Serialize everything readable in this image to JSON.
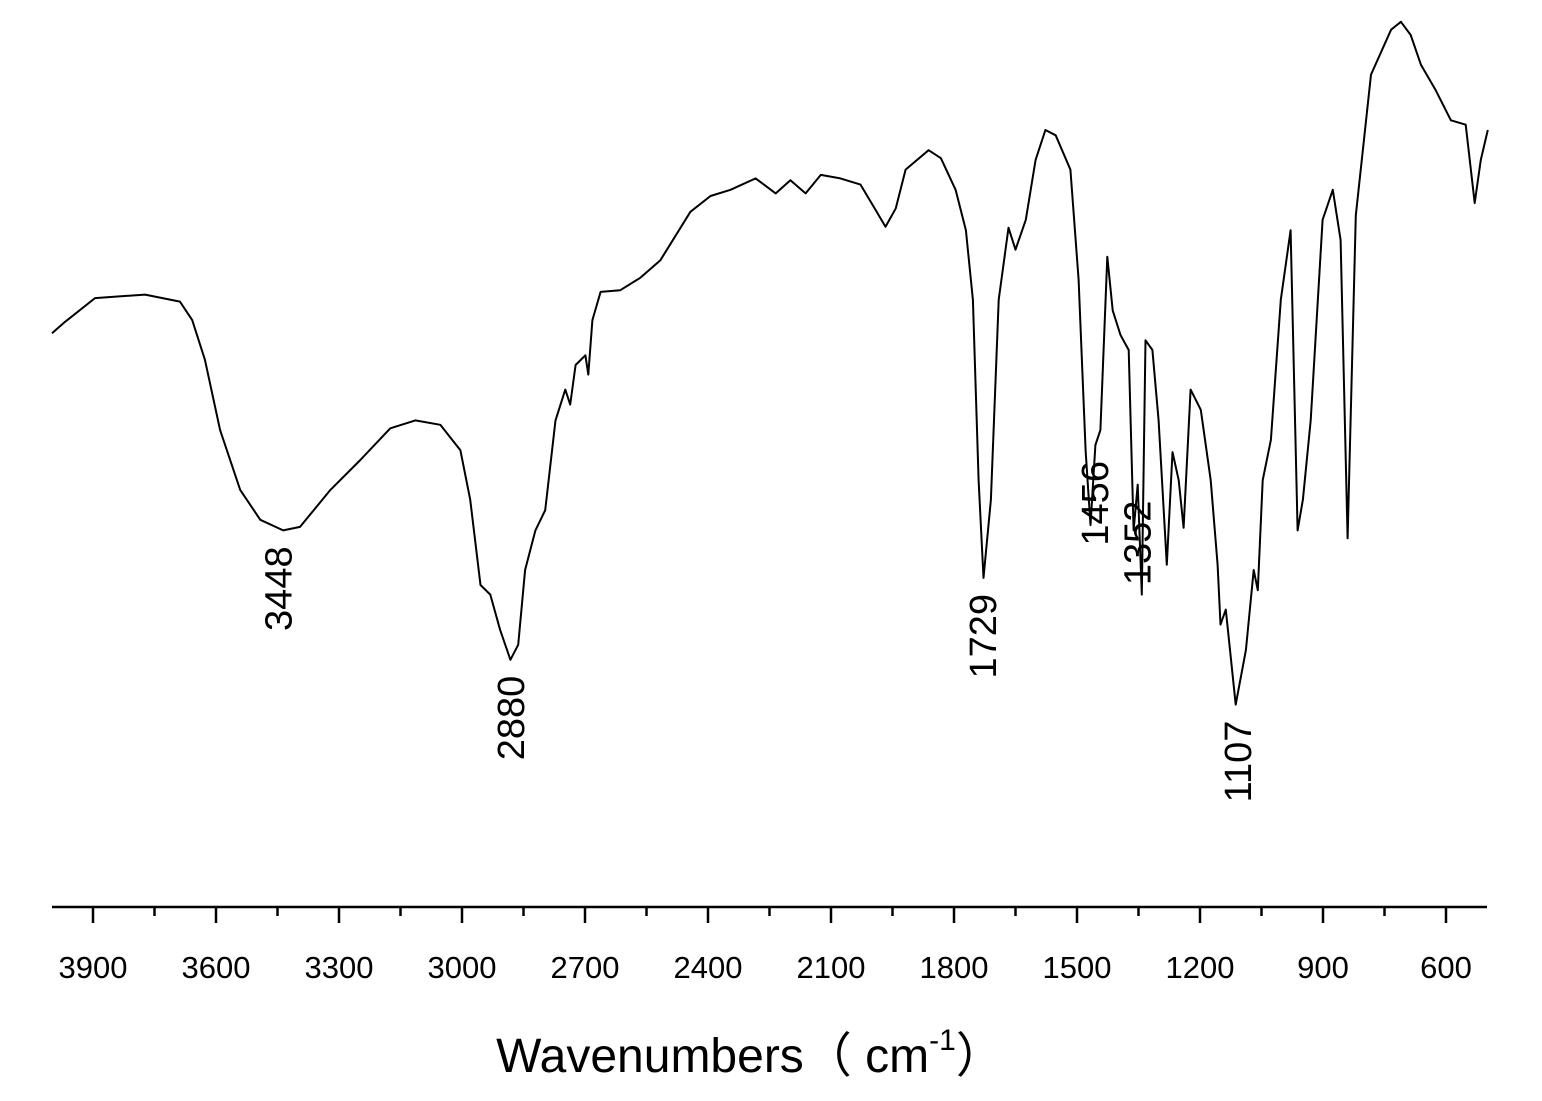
{
  "chart_data": {
    "type": "line",
    "x_label": "Wavenumbers（ cm",
    "x_label_sup": "-1",
    "x_label_end": "）",
    "x": [
      4000,
      3968,
      3895,
      3773,
      3688,
      3658,
      3627,
      3590,
      3541,
      3492,
      3436,
      3395,
      3321,
      3248,
      3175,
      3114,
      3053,
      3004,
      2980,
      2955,
      2931,
      2907,
      2882,
      2863,
      2846,
      2821,
      2797,
      2772,
      2748,
      2736,
      2723,
      2699,
      2692,
      2682,
      2662,
      2614,
      2565,
      2516,
      2443,
      2394,
      2345,
      2284,
      2235,
      2199,
      2162,
      2125,
      2077,
      2028,
      1991,
      1967,
      1942,
      1918,
      1862,
      1832,
      1796,
      1771,
      1754,
      1740,
      1728,
      1710,
      1691,
      1667,
      1650,
      1625,
      1601,
      1577,
      1552,
      1516,
      1496,
      1479,
      1467,
      1455,
      1443,
      1426,
      1413,
      1394,
      1374,
      1362,
      1352,
      1342,
      1333,
      1316,
      1301,
      1281,
      1267,
      1252,
      1240,
      1223,
      1198,
      1174,
      1157,
      1150,
      1137,
      1113,
      1088,
      1069,
      1059,
      1047,
      1027,
      1003,
      979,
      962,
      949,
      930,
      901,
      876,
      857,
      840,
      820,
      783,
      734,
      710,
      686,
      661,
      625,
      588,
      552,
      530,
      515,
      498
    ],
    "values": [
      64.4,
      65.7,
      68.4,
      68.8,
      68.0,
      65.9,
      61.4,
      53.4,
      46.6,
      43.2,
      42.0,
      42.4,
      46.6,
      50.0,
      53.6,
      54.5,
      54.0,
      51.1,
      45.5,
      35.8,
      34.7,
      30.7,
      27.3,
      29.0,
      37.5,
      42.0,
      44.3,
      54.5,
      58.0,
      56.3,
      60.8,
      61.9,
      59.7,
      65.9,
      69.1,
      69.3,
      70.7,
      72.7,
      78.2,
      80.0,
      80.7,
      82.0,
      80.3,
      81.8,
      80.3,
      82.4,
      82.0,
      81.3,
      78.4,
      76.5,
      78.6,
      83.0,
      85.2,
      84.3,
      80.7,
      76.1,
      68.2,
      47.7,
      36.6,
      45.5,
      68.2,
      76.4,
      73.9,
      77.3,
      84.1,
      87.5,
      86.9,
      83.0,
      70.5,
      51.1,
      42.6,
      51.7,
      53.4,
      73.1,
      67.0,
      64.2,
      62.5,
      42.0,
      47.2,
      34.7,
      63.6,
      62.5,
      54.5,
      38.1,
      50.9,
      47.7,
      42.3,
      58.0,
      55.7,
      47.7,
      38.1,
      31.3,
      33.0,
      22.2,
      28.4,
      37.5,
      35.2,
      47.7,
      52.3,
      68.2,
      76.1,
      42.0,
      45.5,
      54.5,
      77.3,
      80.7,
      75.0,
      41.1,
      77.8,
      93.8,
      98.9,
      99.8,
      98.3,
      94.9,
      92.0,
      88.6,
      88.1,
      79.2,
      84.1,
      87.5
    ],
    "color": "#000000",
    "xlim": [
      4000,
      500
    ],
    "ylim": [
      0,
      100
    ],
    "xticks": [
      3900,
      3600,
      3300,
      3000,
      2700,
      2400,
      2100,
      1800,
      1500,
      1200,
      900,
      600
    ],
    "xminorticks": [
      3750,
      3450,
      3150,
      2850,
      2550,
      2250,
      1950,
      1650,
      1350,
      1050,
      750
    ],
    "annotations": [
      {
        "text": "3448",
        "x": 3448
      },
      {
        "text": "2880",
        "x": 2880
      },
      {
        "text": "1729",
        "x": 1729
      },
      {
        "text": "1456",
        "x": 1456
      },
      {
        "text": "1352",
        "x": 1352
      },
      {
        "text": "1107",
        "x": 1107
      }
    ]
  }
}
